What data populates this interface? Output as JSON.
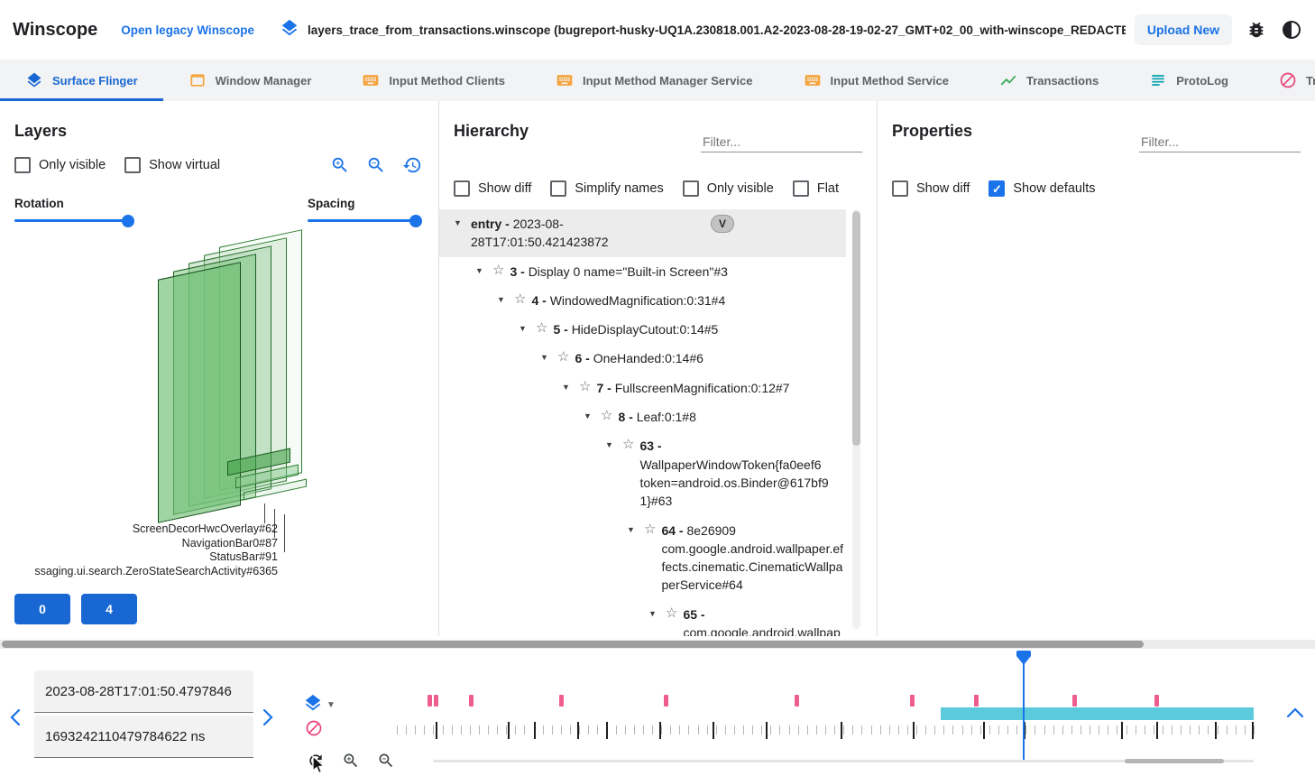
{
  "colors": {
    "accent": "#1a73e8",
    "active_tab": "#1967d2",
    "pink": "#ec407a",
    "cyan": "#5bcbdc",
    "amber": "#f5a33b",
    "green": "#34a853",
    "teal": "#00a0b0"
  },
  "header": {
    "app_title": "Winscope",
    "legacy_link": "Open legacy Winscope",
    "trace_file": "layers_trace_from_transactions.winscope (bugreport-husky-UQ1A.230818.001.A2-2023-08-28-19-02-27_GMT+02_00_with-winscope_REDACTED.zip)",
    "upload_button": "Upload New"
  },
  "tabs": [
    {
      "label": "Surface Flinger",
      "icon": "layers",
      "active": true
    },
    {
      "label": "Window Manager",
      "icon": "window",
      "active": false
    },
    {
      "label": "Input Method Clients",
      "icon": "keyboard",
      "active": false
    },
    {
      "label": "Input Method Manager Service",
      "icon": "keyboard",
      "active": false
    },
    {
      "label": "Input Method Service",
      "icon": "keyboard",
      "active": false
    },
    {
      "label": "Transactions",
      "icon": "chart",
      "active": false
    },
    {
      "label": "ProtoLog",
      "icon": "list",
      "active": false
    },
    {
      "label": "Transitions",
      "icon": "block",
      "active": false
    }
  ],
  "layers": {
    "title": "Layers",
    "checkboxes": [
      {
        "label": "Only visible",
        "checked": false
      },
      {
        "label": "Show virtual",
        "checked": false
      }
    ],
    "rotation_label": "Rotation",
    "spacing_label": "Spacing",
    "layer_labels": [
      "ScreenDecorHwcOverlay#62",
      "NavigationBar0#87",
      "StatusBar#91",
      "ssaging.ui.search.ZeroStateSearchActivity#6365"
    ],
    "display_buttons": [
      "0",
      "4"
    ]
  },
  "hierarchy": {
    "title": "Hierarchy",
    "filter_placeholder": "Filter...",
    "checkboxes": [
      {
        "label": "Show diff",
        "checked": false
      },
      {
        "label": "Simplify names",
        "checked": false
      },
      {
        "label": "Only visible",
        "checked": false
      },
      {
        "label": "Flat",
        "checked": false
      }
    ],
    "tree": [
      {
        "id": "entry",
        "name": "2023-08-28T17:01:50.421423872",
        "level": 0,
        "chip": "V",
        "selected": true,
        "star": false
      },
      {
        "id": "3",
        "name": "Display 0 name=\"Built-in Screen\"#3",
        "level": 1,
        "star": true
      },
      {
        "id": "4",
        "name": "WindowedMagnification:0:31#4",
        "level": 2,
        "star": true
      },
      {
        "id": "5",
        "name": "HideDisplayCutout:0:14#5",
        "level": 3,
        "star": true
      },
      {
        "id": "6",
        "name": "OneHanded:0:14#6",
        "level": 4,
        "star": true
      },
      {
        "id": "7",
        "name": "FullscreenMagnification:0:12#7",
        "level": 5,
        "star": true
      },
      {
        "id": "8",
        "name": "Leaf:0:1#8",
        "level": 6,
        "star": true
      },
      {
        "id": "63",
        "name": "WallpaperWindowToken{fa0eef6 token=android.os.Binder@617bf91}#63",
        "level": 7,
        "star": true
      },
      {
        "id": "64",
        "name": "8e26909 com.google.android.wallpaper.effects.cinematic.CinematicWallpaperService#64",
        "level": 8,
        "star": true
      },
      {
        "id": "65",
        "name": "com.google.android.wallpaper.effects.cinematic.CinematicWallpaperSer",
        "level": 9,
        "star": true
      }
    ]
  },
  "properties": {
    "title": "Properties",
    "filter_placeholder": "Filter...",
    "checkboxes": [
      {
        "label": "Show diff",
        "checked": false
      },
      {
        "label": "Show defaults",
        "checked": true
      }
    ]
  },
  "timeline": {
    "timestamp_human": "2023-08-28T17:01:50.4797846",
    "timestamp_ns": "1693242110479784622 ns",
    "event_marks_pct": [
      3.6,
      4.3,
      8.4,
      18.9,
      31.2,
      46.4,
      59.9,
      67.4,
      78.8,
      88.4
    ],
    "entry_marks_pct": [
      4.5,
      12.9,
      16.0,
      21.1,
      24.4,
      30.6,
      36.8,
      43.1,
      51.8,
      60.2,
      68.4,
      73.2,
      84.5,
      88.6,
      95.5,
      99.8
    ],
    "minor_tick_count": 95,
    "cyan_range_pct": [
      63.5,
      100
    ],
    "cursor_pct": 73.2
  }
}
